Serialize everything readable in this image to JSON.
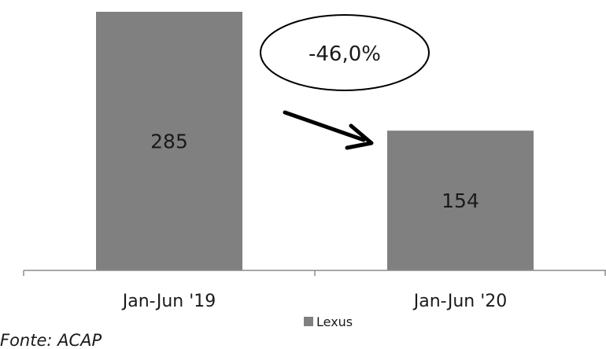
{
  "chart_data": {
    "type": "bar",
    "categories": [
      "Jan-Jun '19",
      "Jan-Jun '20"
    ],
    "series": [
      {
        "name": "Lexus",
        "values": [
          285,
          154
        ]
      }
    ],
    "value_labels": [
      "285",
      "154"
    ],
    "ylim": [
      0,
      285
    ],
    "grid": false,
    "legend": {
      "placement": "bottom-center",
      "entries": [
        "Lexus"
      ]
    },
    "annotation": {
      "text": "-46,0%",
      "shape": "ellipse",
      "arrow": "from first bar toward second bar"
    },
    "source": "Fonte: ACAP",
    "colors": {
      "bar": "#808080",
      "axis": "#8c8c8c",
      "text": "#1a1a1a",
      "arrow": "#000000"
    }
  }
}
